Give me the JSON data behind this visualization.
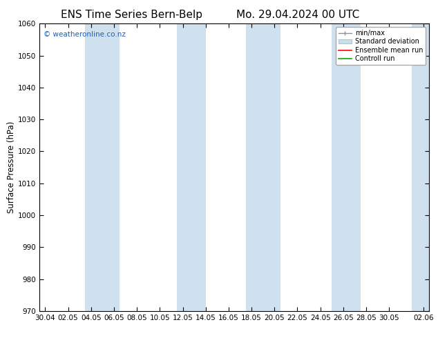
{
  "title_left": "ENS Time Series Bern-Belp",
  "title_right": "Mo. 29.04.2024 00 UTC",
  "ylabel": "Surface Pressure (hPa)",
  "ylim": [
    970,
    1060
  ],
  "yticks": [
    970,
    980,
    990,
    1000,
    1010,
    1020,
    1030,
    1040,
    1050,
    1060
  ],
  "xtick_labels": [
    "30.04",
    "02.05",
    "04.05",
    "06.05",
    "08.05",
    "10.05",
    "12.05",
    "14.05",
    "16.05",
    "18.05",
    "20.05",
    "22.05",
    "24.05",
    "26.05",
    "28.05",
    "30.05",
    "02.06"
  ],
  "x_days": [
    0,
    2,
    4,
    6,
    8,
    10,
    12,
    14,
    16,
    18,
    20,
    22,
    24,
    26,
    28,
    30,
    33
  ],
  "x_min": -0.5,
  "x_max": 33.5,
  "watermark": "© weatheronline.co.nz",
  "legend_entries": [
    "min/max",
    "Standard deviation",
    "Ensemble mean run",
    "Controll run"
  ],
  "legend_colors_line": [
    "#a0a0a0",
    "#c8dfee",
    "#ff0000",
    "#00aa00"
  ],
  "band_color": "#cfe0ef",
  "band_ranges": [
    [
      3.5,
      6.5
    ],
    [
      11.5,
      14.0
    ],
    [
      17.5,
      20.5
    ],
    [
      25.0,
      27.5
    ],
    [
      32.0,
      33.5
    ]
  ],
  "background_color": "#ffffff",
  "title_fontsize": 11,
  "tick_fontsize": 7.5,
  "ylabel_fontsize": 8.5,
  "legend_fontsize": 7
}
